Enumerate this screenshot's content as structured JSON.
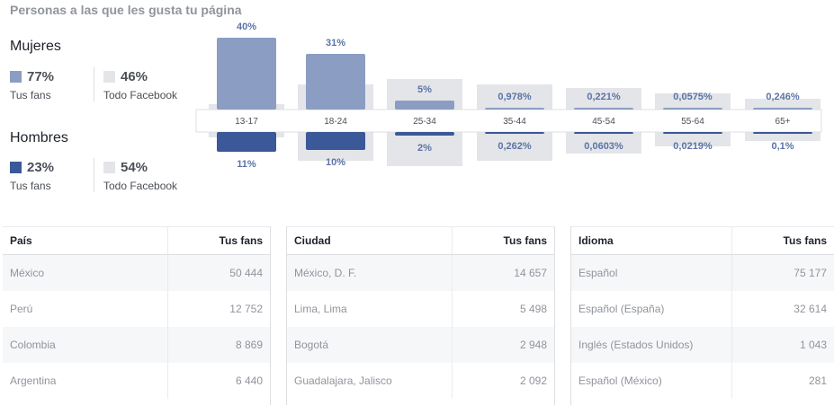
{
  "title": "Personas a las que les gusta tu página",
  "women": {
    "label": "Mujeres",
    "fans_pct": "77%",
    "fans_label": "Tus fans",
    "all_pct": "46%",
    "all_label": "Todo Facebook"
  },
  "men": {
    "label": "Hombres",
    "fans_pct": "23%",
    "fans_label": "Tus fans",
    "all_pct": "54%",
    "all_label": "Todo Facebook"
  },
  "colors": {
    "women_fans": "#8b9dc3",
    "men_fans": "#3b5998",
    "all_facebook": "#e4e5e8",
    "label": "#5b73a8"
  },
  "chart_data": {
    "type": "bar",
    "categories": [
      "13-17",
      "18-24",
      "25-34",
      "35-44",
      "45-54",
      "55-64",
      "65+"
    ],
    "series": [
      {
        "name": "Mujeres",
        "values": [
          40,
          31,
          5,
          0.978,
          0.221,
          0.0575,
          0.246
        ],
        "labels": [
          "40%",
          "31%",
          "5%",
          "0,978%",
          "0,221%",
          "0,0575%",
          "0,246%"
        ]
      },
      {
        "name": "Hombres",
        "values": [
          11,
          10,
          2,
          0.262,
          0.0603,
          0.0219,
          0.1
        ],
        "labels": [
          "11%",
          "10%",
          "2%",
          "0,262%",
          "0,0603%",
          "0,0219%",
          "0,1%"
        ]
      }
    ],
    "background_women": [
      3,
      14,
      17,
      14,
      12,
      9,
      6
    ],
    "background_men": [
      3,
      16,
      19,
      16,
      12,
      8,
      5
    ]
  },
  "tables": [
    {
      "header": [
        "País",
        "Tus fans"
      ],
      "rows": [
        [
          "México",
          "50 444"
        ],
        [
          "Perú",
          "12 752"
        ],
        [
          "Colombia",
          "8 869"
        ],
        [
          "Argentina",
          "6 440"
        ]
      ]
    },
    {
      "header": [
        "Ciudad",
        "Tus fans"
      ],
      "rows": [
        [
          "México, D. F.",
          "14 657"
        ],
        [
          "Lima, Lima",
          "5 498"
        ],
        [
          "Bogotá",
          "2 948"
        ],
        [
          "Guadalajara, Jalisco",
          "2 092"
        ]
      ]
    },
    {
      "header": [
        "Idioma",
        "Tus fans"
      ],
      "rows": [
        [
          "Español",
          "75 177"
        ],
        [
          "Español (España)",
          "32 614"
        ],
        [
          "Inglés (Estados Unidos)",
          "1 043"
        ],
        [
          "Español (México)",
          "281"
        ]
      ]
    }
  ]
}
